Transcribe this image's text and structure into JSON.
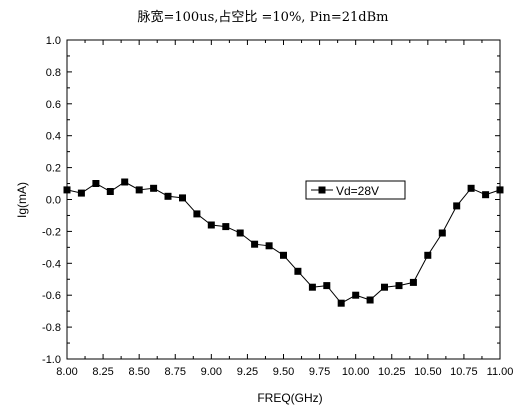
{
  "chart_data": {
    "type": "line",
    "title": "脉宽=100us,占空比 =10%, Pin=21dBm",
    "xlabel": "FREQ(GHz)",
    "ylabel": "Ig(mA)",
    "xlim": [
      8.0,
      11.0
    ],
    "ylim": [
      -1.0,
      1.0
    ],
    "x_ticks": [
      "8.00",
      "8.25",
      "8.50",
      "8.75",
      "9.00",
      "9.25",
      "9.50",
      "9.75",
      "10.00",
      "10.25",
      "10.50",
      "10.75",
      "11.00"
    ],
    "y_ticks": [
      "-1.0",
      "-0.8",
      "-0.6",
      "-0.4",
      "-0.2",
      "0.0",
      "0.2",
      "0.4",
      "0.6",
      "0.8",
      "1.0"
    ],
    "grid": false,
    "legend_position": "upper-right",
    "series": [
      {
        "name": "Vd=28V",
        "color": "#000000",
        "marker": "square",
        "x": [
          8.0,
          8.1,
          8.2,
          8.3,
          8.4,
          8.5,
          8.6,
          8.7,
          8.8,
          8.9,
          9.0,
          9.1,
          9.2,
          9.3,
          9.4,
          9.5,
          9.6,
          9.7,
          9.8,
          9.9,
          10.0,
          10.1,
          10.2,
          10.3,
          10.4,
          10.5,
          10.6,
          10.7,
          10.8,
          10.9,
          11.0
        ],
        "values": [
          0.06,
          0.04,
          0.1,
          0.05,
          0.11,
          0.06,
          0.07,
          0.02,
          0.01,
          -0.09,
          -0.16,
          -0.17,
          -0.21,
          -0.28,
          -0.29,
          -0.35,
          -0.45,
          -0.55,
          -0.54,
          -0.65,
          -0.6,
          -0.63,
          -0.55,
          -0.54,
          -0.52,
          -0.35,
          -0.21,
          -0.04,
          0.07,
          0.03,
          0.06
        ]
      }
    ]
  }
}
